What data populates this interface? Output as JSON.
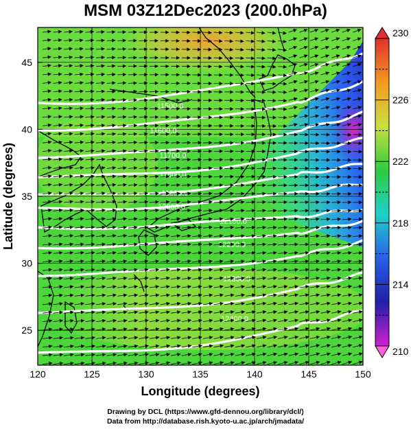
{
  "title": "MSM 03Z12Dec2023 (200.0hPa)",
  "credits": {
    "line1": "Drawing by DCL (https://www.gfd-dennou.org/library/dcl/)",
    "line2": "Data from http://database.rish.kyoto-u.ac.jp/arch/jmadata/"
  },
  "map": {
    "xlabel": "Longitude (degrees)",
    "ylabel": "Latitude  (degrees)",
    "x_ticks": [
      "120",
      "125",
      "130",
      "135",
      "140",
      "145",
      "150"
    ],
    "y_ticks": [
      "25",
      "30",
      "35",
      "40",
      "45"
    ],
    "lon_range": [
      120,
      150
    ],
    "lat_range": [
      22.4,
      47.6
    ],
    "colorbar": {
      "labels": [
        "230",
        "226",
        "222",
        "218",
        "214",
        "210"
      ],
      "range": [
        210,
        230
      ],
      "colors": [
        "#e03030",
        "#f59a1e",
        "#c8e040",
        "#2ecc40",
        "#20d0c8",
        "#2a60e8",
        "#2020a8",
        "#d020d0"
      ]
    },
    "contour_labels": [
      "11500.0",
      "11600.0",
      "11700.0",
      "11800.0",
      "11900.0",
      "12000.0",
      "12100.0",
      "12200.0",
      "12300.0",
      "12400.0"
    ]
  }
}
